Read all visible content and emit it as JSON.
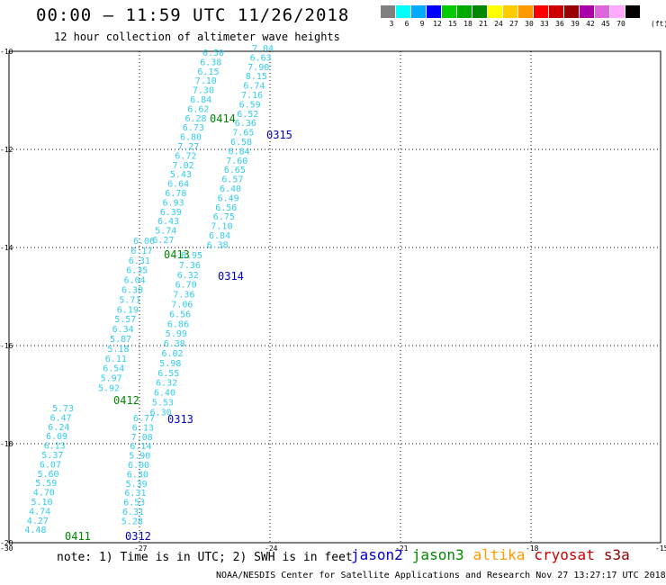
{
  "title": "00:00 — 11:59 UTC 11/26/2018",
  "subtitle": "12 hour collection of altimeter wave heights",
  "legend": {
    "unit": "(ft)",
    "bins": [
      {
        "label": "3",
        "color": "#808080"
      },
      {
        "label": "6",
        "color": "#00ffff"
      },
      {
        "label": "9",
        "color": "#00aaff"
      },
      {
        "label": "12",
        "color": "#0000ff"
      },
      {
        "label": "15",
        "color": "#00cc00"
      },
      {
        "label": "18",
        "color": "#00aa00"
      },
      {
        "label": "21",
        "color": "#008800"
      },
      {
        "label": "24",
        "color": "#ffff00"
      },
      {
        "label": "27",
        "color": "#ffcc00"
      },
      {
        "label": "30",
        "color": "#ff9900"
      },
      {
        "label": "33",
        "color": "#ff0000"
      },
      {
        "label": "36",
        "color": "#cc0000"
      },
      {
        "label": "39",
        "color": "#990000"
      },
      {
        "label": "42",
        "color": "#aa00aa"
      },
      {
        "label": "45",
        "color": "#dd66dd"
      },
      {
        "label": "70",
        "color": "#ffaaff"
      },
      {
        "label": "",
        "color": "#000000"
      }
    ]
  },
  "map": {
    "lon_ticks": [
      "-30",
      "-27",
      "-24",
      "-21",
      "-18",
      "-15"
    ],
    "lat_ticks": [
      "-10",
      "-12",
      "-14",
      "-16",
      "-18",
      "-20"
    ],
    "value_color": "#33ccee",
    "tracks": [
      {
        "label": "0414",
        "color": "#008800",
        "values": [
          "6.50",
          "6.38",
          "6.15",
          "7.10",
          "7.30",
          "6.84",
          "6.62",
          "6.28",
          "6.73",
          "6.80",
          "7.27",
          "6.72",
          "7.02",
          "5.43",
          "6.64",
          "6.78",
          "6.93",
          "6.39",
          "6.43",
          "5.74",
          "6.27"
        ]
      },
      {
        "label": "0315",
        "color": "#0000cc",
        "values": [
          "7.04",
          "6.63",
          "7.90",
          "8.15",
          "6.74",
          "7.16",
          "6.59",
          "6.52",
          "6.36",
          "7.65",
          "6.58",
          "6.84",
          "7.60",
          "6.65",
          "6.57",
          "6.40",
          "6.49",
          "6.56",
          "6.75",
          "7.10",
          "6.84",
          "6.38"
        ]
      },
      {
        "label": "0413",
        "color": "#008800",
        "values": [
          "6.06",
          "6.17",
          "6.31",
          "6.35",
          "6.04",
          "6.30",
          "5.71",
          "6.19",
          "5.57",
          "6.34",
          "5.87",
          "5.18",
          "6.11",
          "6.54",
          "5.97",
          "5.92"
        ]
      },
      {
        "label": "0314",
        "color": "#0000cc",
        "values": [
          "6.95",
          "7.36",
          "6.32",
          "6.70",
          "7.36",
          "7.06",
          "6.56",
          "6.86",
          "5.99",
          "6.38",
          "6.02",
          "5.98",
          "6.55",
          "6.32",
          "6.40",
          "5.53",
          "6.30"
        ]
      },
      {
        "label": "0412",
        "color": "#008800",
        "values": [
          "5.73",
          "6.47",
          "6.24",
          "6.09",
          "6.13",
          "5.37",
          "6.07",
          "5.60",
          "5.59",
          "4.70",
          "5.10",
          "4.74",
          "4.27",
          "4.48"
        ]
      },
      {
        "label": "0313",
        "color": "#0000cc",
        "values": [
          "6.77",
          "6.13",
          "7.08",
          "6.14",
          "5.90",
          "6.00",
          "6.30",
          "5.39",
          "6.31",
          "6.53",
          "6.31",
          "5.28"
        ]
      },
      {
        "label": "0411",
        "color": "#008800",
        "values": []
      },
      {
        "label": "0312",
        "color": "#0000cc",
        "values": []
      }
    ]
  },
  "note": "note:  1) Time is in UTC;  2) SWH is in feet",
  "satellites": [
    {
      "name": "jason2",
      "color": "#0000cc"
    },
    {
      "name": "jason3",
      "color": "#008800"
    },
    {
      "name": "altika",
      "color": "#ff9900"
    },
    {
      "name": "cryosat",
      "color": "#cc0000"
    },
    {
      "name": "s3a",
      "color": "#880000"
    }
  ],
  "footer": "NOAA/NESDIS Center for Satellite Applications and Research    Nov 27 13:27:17 UTC 2018"
}
